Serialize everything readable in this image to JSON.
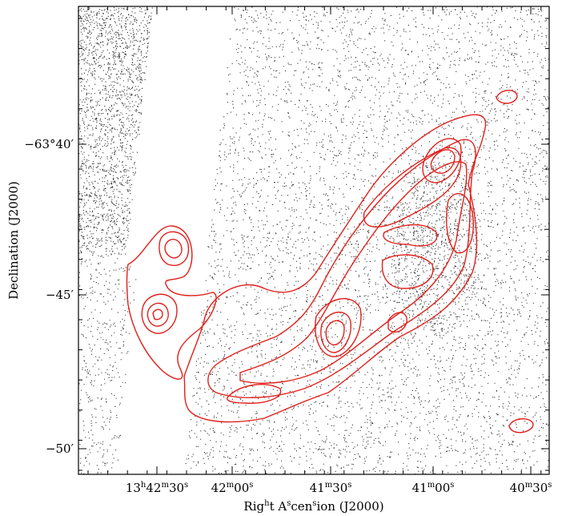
{
  "figure": {
    "x_axis": {
      "label": "Right Ascension (J2000)",
      "tick_labels": [
        "13h42m30s",
        "42m00s",
        "41m30s",
        "41m00s",
        "40m30s"
      ]
    },
    "y_axis": {
      "label": "Declination (J2000)",
      "tick_labels": [
        "−63°40′",
        "−45′",
        "−50′"
      ]
    }
  }
}
